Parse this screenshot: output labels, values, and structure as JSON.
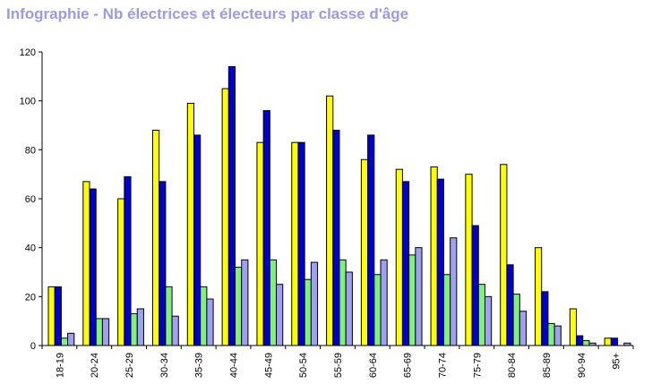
{
  "chart_data": {
    "type": "bar",
    "title": "Infographie - Nb électrices et électeurs par classe d'âge",
    "categories": [
      "18-19",
      "20-24",
      "25-29",
      "30-34",
      "35-39",
      "40-44",
      "45-49",
      "50-54",
      "55-59",
      "60-64",
      "65-69",
      "70-74",
      "75-79",
      "80-84",
      "85-89",
      "90-94",
      "95+"
    ],
    "series": [
      {
        "color": "#ffff00",
        "values": [
          24,
          67,
          60,
          88,
          99,
          105,
          83,
          83,
          102,
          76,
          72,
          73,
          70,
          74,
          40,
          15,
          3
        ]
      },
      {
        "color": "#0000cc",
        "values": [
          24,
          64,
          69,
          67,
          86,
          114,
          96,
          83,
          88,
          86,
          67,
          68,
          49,
          33,
          22,
          4,
          3
        ]
      },
      {
        "color": "#80f080",
        "values": [
          3,
          11,
          13,
          24,
          24,
          32,
          35,
          27,
          35,
          29,
          37,
          29,
          25,
          21,
          9,
          2,
          0
        ]
      },
      {
        "color": "#a0a0f0",
        "values": [
          5,
          11,
          15,
          12,
          19,
          35,
          25,
          34,
          30,
          35,
          40,
          44,
          20,
          14,
          8,
          1,
          1
        ]
      }
    ],
    "ylim": [
      0,
      120
    ],
    "yticks": [
      0,
      20,
      40,
      60,
      80,
      100,
      120
    ],
    "grid": false,
    "legend": "none"
  }
}
